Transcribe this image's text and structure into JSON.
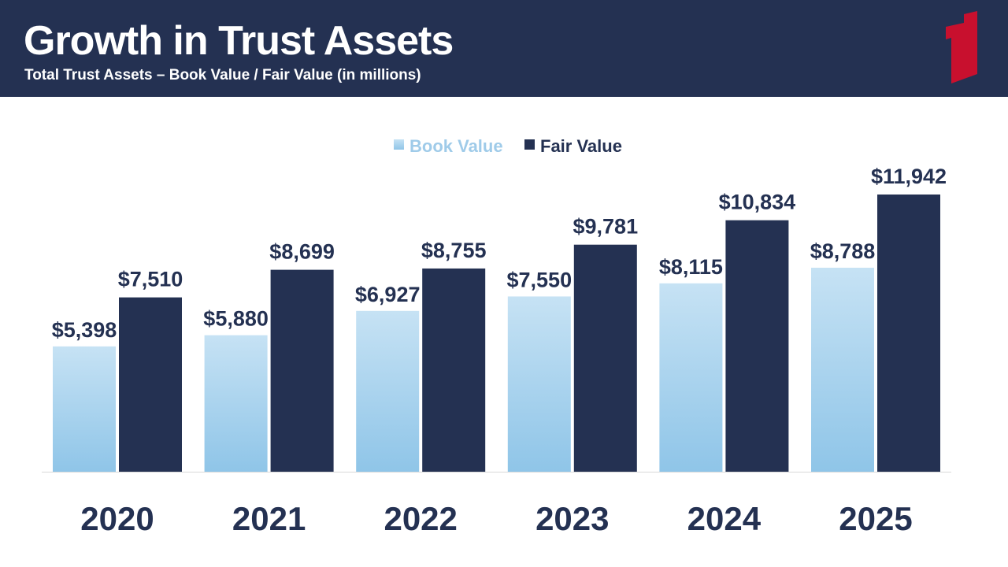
{
  "header": {
    "title": "Growth in Trust Assets",
    "subtitle": "Total Trust Assets – Book Value / Fair Value (in millions)"
  },
  "colors": {
    "header_bg": "#243152",
    "book_value_light": "#c6e2f4",
    "book_value_dark": "#8fc5e8",
    "fair_value": "#243152",
    "legend_book_text": "#9fcbe9",
    "legend_fair_text": "#243152",
    "logo_red": "#c8102e"
  },
  "chart_data": {
    "type": "bar",
    "categories": [
      "2020",
      "2021",
      "2022",
      "2023",
      "2024",
      "2025"
    ],
    "series": [
      {
        "name": "Book Value",
        "values": [
          5398,
          5880,
          6927,
          7550,
          8115,
          8788
        ],
        "labels": [
          "$5,398",
          "$5,880",
          "$6,927",
          "$7,550",
          "$8,115",
          "$8,788"
        ]
      },
      {
        "name": "Fair Value",
        "values": [
          7510,
          8699,
          8755,
          9781,
          10834,
          11942
        ],
        "labels": [
          "$7,510",
          "$8,699",
          "$8,755",
          "$9,781",
          "$10,834",
          "$11,942"
        ]
      }
    ],
    "ylim": [
      0,
      12000
    ],
    "grid": false,
    "legend_position": "top-center"
  }
}
